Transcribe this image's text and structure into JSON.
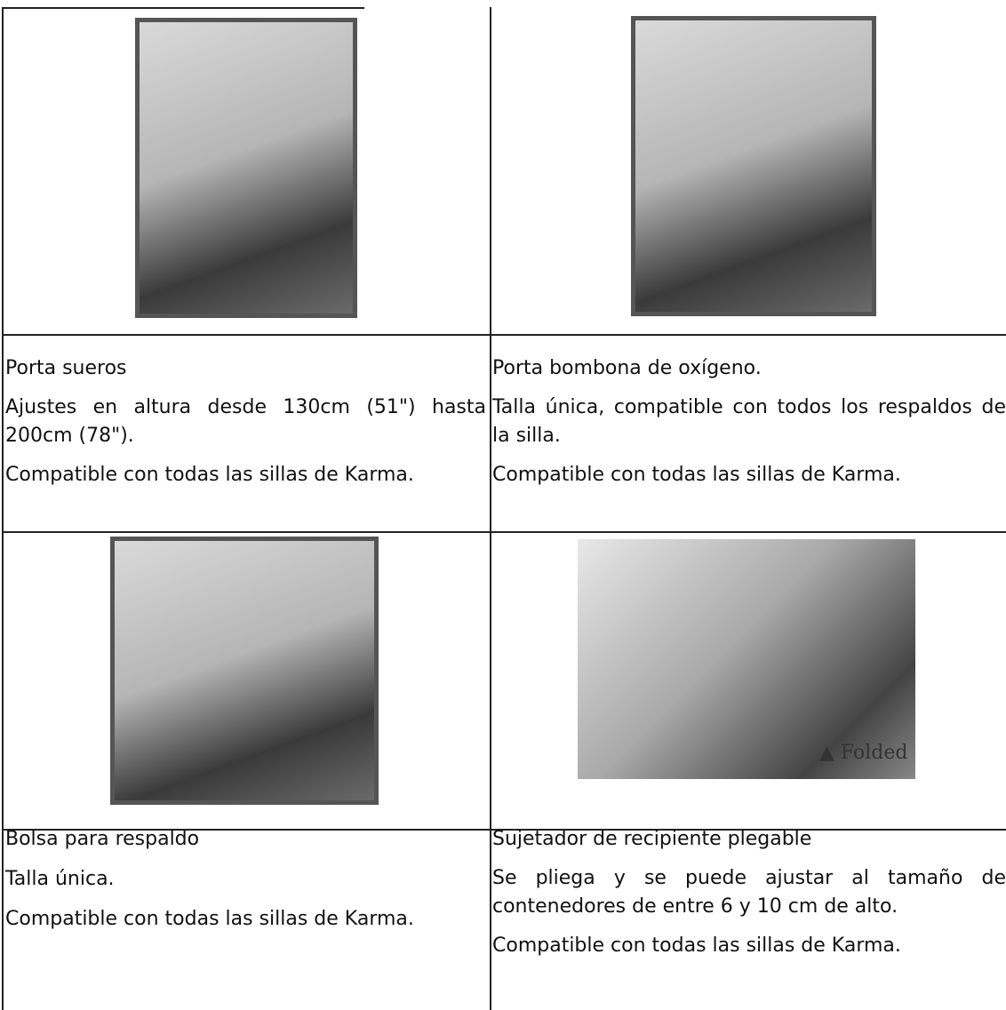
{
  "products": [
    {
      "name": "Porta sueros",
      "lines": [
        "Ajustes en altura desde 130cm (51\") hasta 200cm (78\").",
        "Compatible con todas las sillas de Karma."
      ]
    },
    {
      "name": "Porta bombona de oxígeno.",
      "lines": [
        "Talla única, compatible con todos los respaldos de la silla.",
        "Compatible con todas las sillas de Karma."
      ]
    },
    {
      "name": "Bolsa para respaldo",
      "lines": [
        "Talla única.",
        "Compatible con todas las sillas de Karma."
      ]
    },
    {
      "name": "Sujetador de recipiente plegable",
      "image_label": "▲ Folded",
      "lines": [
        "Se pliega y se puede ajustar al tamaño de contenedores de entre 6 y 10 cm de alto.",
        "Compatible con todas las sillas de Karma."
      ]
    }
  ]
}
